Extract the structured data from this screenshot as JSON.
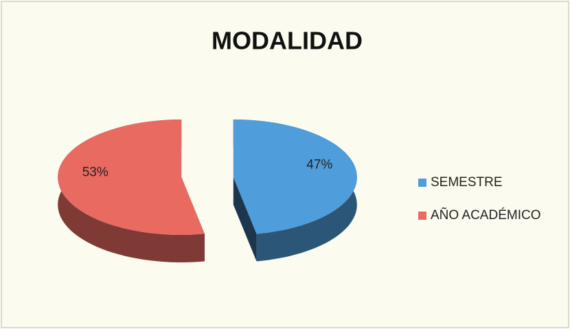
{
  "chart_data": {
    "type": "pie",
    "title": "MODALIDAD",
    "categories": [
      "SEMESTRE",
      "AÑO ACADÉMICO"
    ],
    "values": [
      47,
      53
    ],
    "value_labels": [
      "47%",
      "53%"
    ],
    "colors": [
      "#4f9ddb",
      "#e86a61"
    ],
    "legend": "right"
  }
}
